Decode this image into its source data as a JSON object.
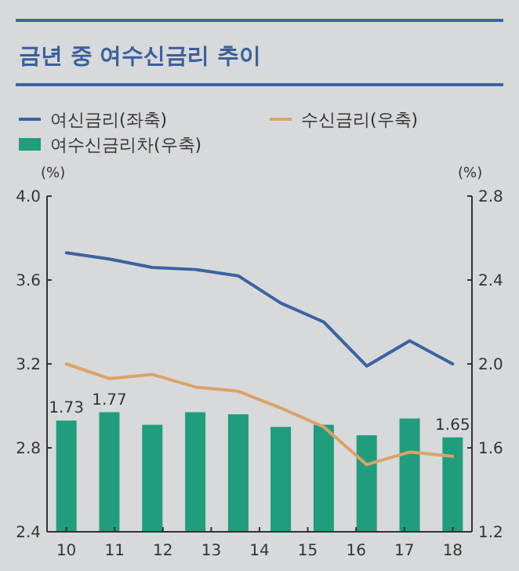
{
  "chart_data": {
    "type": "line",
    "title": "금년 중 여수신금리 추이",
    "ylabel": "(%)",
    "y2label": "(%)",
    "x": [
      10,
      10.89,
      11.78,
      12.67,
      13.56,
      14.44,
      15.33,
      16.22,
      17.11,
      18
    ],
    "xlim": [
      9.6,
      18.4
    ],
    "xticks": [
      10,
      11,
      12,
      13,
      14,
      15,
      16,
      17,
      18
    ],
    "ylim": [
      2.4,
      4.0
    ],
    "yticks": [
      {
        "value": 2.4,
        "label": "2.4"
      },
      {
        "value": 2.8,
        "label": "2.8"
      },
      {
        "value": 3.2,
        "label": "3.2"
      },
      {
        "value": 3.6,
        "label": "3.6"
      },
      {
        "value": 4.0,
        "label": "4.0"
      }
    ],
    "y2lim": [
      1.2,
      2.8
    ],
    "y2ticks": [
      {
        "value": 1.2,
        "label": "1.2"
      },
      {
        "value": 1.6,
        "label": "1.6"
      },
      {
        "value": 2.0,
        "label": "2.0"
      },
      {
        "value": 2.4,
        "label": "2.4"
      },
      {
        "value": 2.8,
        "label": "2.8"
      }
    ],
    "legend": "top",
    "grid": false,
    "marker": "none",
    "line_style": "solid",
    "series": [
      {
        "name": "여신금리(좌축)",
        "color": "#3a64a0",
        "values": [
          3.73,
          3.7,
          3.66,
          3.65,
          3.62,
          3.49,
          3.4,
          3.19,
          3.31,
          3.2
        ]
      },
      {
        "name": "수신금리(우축)",
        "axis": "y2",
        "color": "#d9a36a",
        "values": [
          2.0,
          1.93,
          1.95,
          1.89,
          1.87,
          1.79,
          1.7,
          1.52,
          1.58,
          1.56
        ]
      },
      {
        "name": "여수신금리차(우축)",
        "type": "bar",
        "axis": "y2",
        "color": "#1f9d7d",
        "values": [
          1.73,
          1.77,
          1.71,
          1.77,
          1.76,
          1.7,
          1.71,
          1.66,
          1.74,
          1.65
        ],
        "value_labels": [
          "1.73",
          "1.77",
          null,
          null,
          null,
          null,
          null,
          null,
          null,
          "1.65"
        ]
      }
    ]
  }
}
